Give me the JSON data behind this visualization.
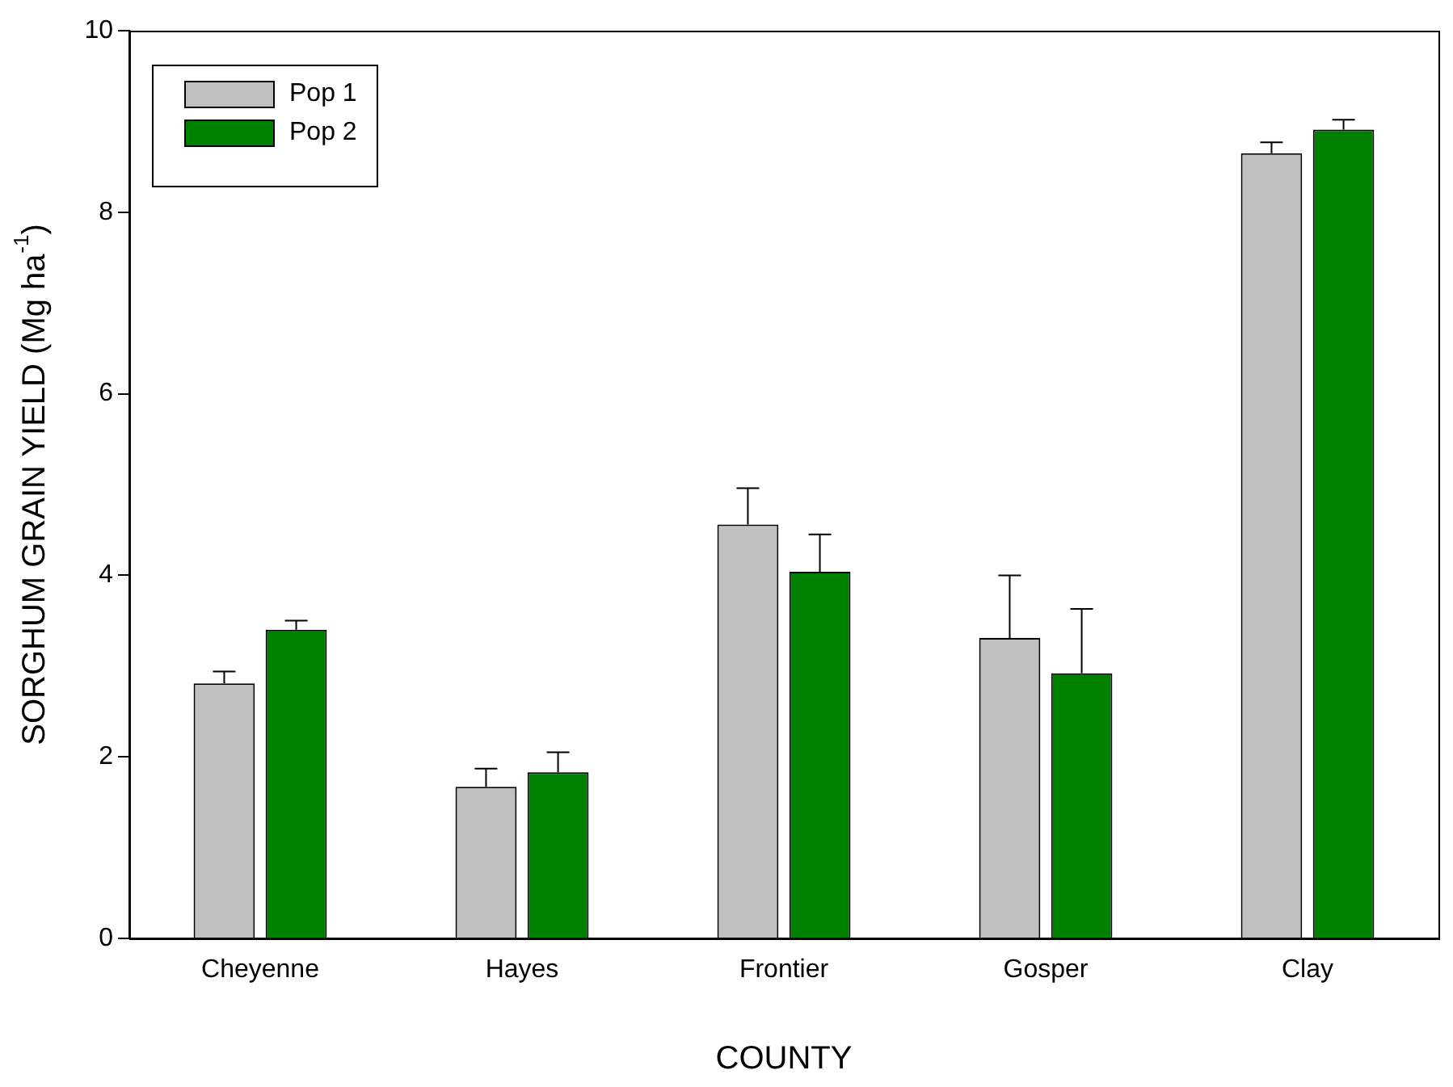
{
  "chart_data": {
    "type": "bar",
    "xlabel": "COUNTY",
    "ylabel": "SORGHUM GRAIN YIELD (Mg ha$^{-1}$)",
    "categories": [
      "Cheyenne",
      "Hayes",
      "Frontier",
      "Gosper",
      "Clay"
    ],
    "series": [
      {
        "name": "Pop 1",
        "color": "#c0c0c0",
        "values": [
          2.81,
          1.67,
          4.56,
          3.31,
          8.65
        ],
        "errors": [
          [
            2.81,
            2.94
          ],
          [
            1.67,
            1.87
          ],
          [
            4.56,
            4.96
          ],
          [
            3.31,
            4.0
          ],
          [
            8.65,
            8.77
          ]
        ]
      },
      {
        "name": "Pop 2",
        "color": "#008000",
        "values": [
          3.4,
          1.83,
          4.04,
          2.92,
          8.91
        ],
        "errors": [
          [
            3.4,
            3.5
          ],
          [
            1.83,
            2.05
          ],
          [
            4.04,
            4.45
          ],
          [
            2.92,
            3.63
          ],
          [
            8.91,
            9.02
          ]
        ]
      }
    ],
    "ylim": [
      0,
      10
    ],
    "yticks": [
      0,
      2,
      4,
      6,
      8,
      10
    ],
    "grid": false,
    "legend": "top left"
  }
}
